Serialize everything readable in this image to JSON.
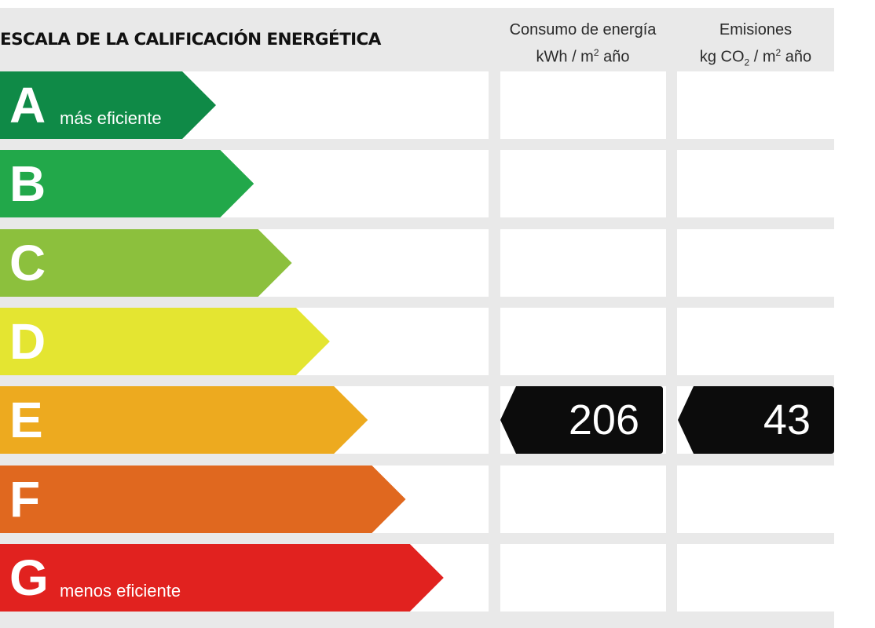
{
  "title": "ESCALA DE LA CALIFICACIÓN ENERGÉTICA",
  "columns": {
    "consumo": {
      "label": "Consumo de energía",
      "unit_pre": "kWh / m",
      "unit_sup": "2",
      "unit_post": " año"
    },
    "emisiones": {
      "label": "Emisiones",
      "unit_pre": "kg CO",
      "unit_sub": "2",
      "unit_mid": " / m",
      "unit_sup": "2",
      "unit_post": " año"
    }
  },
  "chart_data": {
    "type": "bar",
    "categories": [
      "A",
      "B",
      "C",
      "D",
      "E",
      "F",
      "G"
    ],
    "category_sublabels": {
      "A": "más eficiente",
      "G": "menos eficiente"
    },
    "colors": [
      "#0f8a47",
      "#22a84a",
      "#8cc03d",
      "#e4e531",
      "#edaa1f",
      "#e0681f",
      "#e1221f"
    ],
    "rating": "E",
    "consumo_value": "206",
    "emisiones_value": "43",
    "marker_color": "#0c0c0c"
  }
}
